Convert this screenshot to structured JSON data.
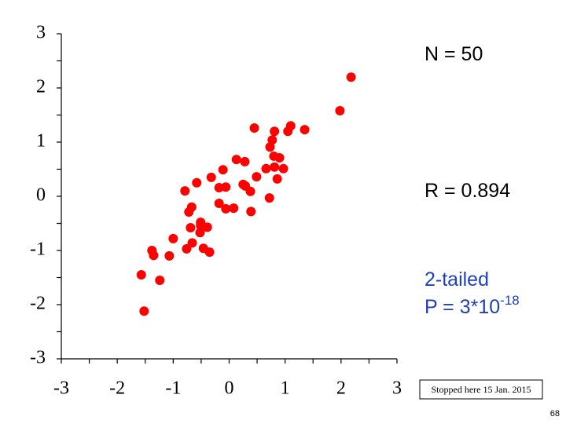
{
  "chart_data": {
    "type": "scatter",
    "color": "#ff0000",
    "x": [
      2.18,
      1.98,
      0.45,
      0.81,
      0.77,
      0.73,
      1.1,
      1.05,
      1.35,
      0.8,
      0.9,
      0.13,
      0.28,
      -0.11,
      0.66,
      0.81,
      0.97,
      0.49,
      0.86,
      -0.32,
      -0.58,
      -0.79,
      -0.18,
      -0.06,
      0.29,
      0.38,
      0.72,
      -0.18,
      -0.06,
      0.08,
      0.39,
      -0.67,
      -0.72,
      -0.69,
      -0.51,
      -0.39,
      -0.52,
      -1.0,
      -0.66,
      -0.76,
      -0.46,
      -0.35,
      -1.38,
      -1.35,
      -1.07,
      -1.57,
      -1.24,
      -1.52,
      -0.51,
      0.25
    ],
    "values": [
      2.2,
      1.58,
      1.26,
      1.2,
      1.04,
      0.91,
      1.3,
      1.2,
      1.23,
      0.74,
      0.71,
      0.68,
      0.64,
      0.49,
      0.51,
      0.54,
      0.51,
      0.36,
      0.32,
      0.35,
      0.25,
      0.1,
      0.16,
      0.17,
      0.19,
      0.09,
      -0.03,
      -0.13,
      -0.23,
      -0.22,
      -0.28,
      -0.2,
      -0.29,
      -0.58,
      -0.54,
      -0.57,
      -0.67,
      -0.78,
      -0.86,
      -0.97,
      -0.96,
      -1.03,
      -1.0,
      -1.09,
      -1.1,
      -1.45,
      -1.55,
      -2.12,
      -0.48,
      0.22
    ],
    "xlim": [
      -3,
      3
    ],
    "ylim": [
      -3,
      3
    ],
    "xticks": [
      -3,
      -2,
      -1,
      0,
      1,
      2,
      3
    ],
    "yticks": [
      -3,
      -2,
      -1,
      0,
      1,
      2,
      3
    ],
    "xminorticks": [
      -2.5,
      -1.5,
      -0.5,
      0.5,
      1.5,
      2.5
    ],
    "yminorticks": [
      -2.5,
      -1.5,
      -0.5,
      0.5,
      1.5,
      2.5
    ],
    "annotations": {
      "n": "N = 50",
      "r": "R = 0.894",
      "test": "2-tailed",
      "p_base": "P = 3*10",
      "p_exponent": "-18",
      "stopped": "Stopped here 15 Jan. 2015"
    }
  },
  "slide_number": "68"
}
